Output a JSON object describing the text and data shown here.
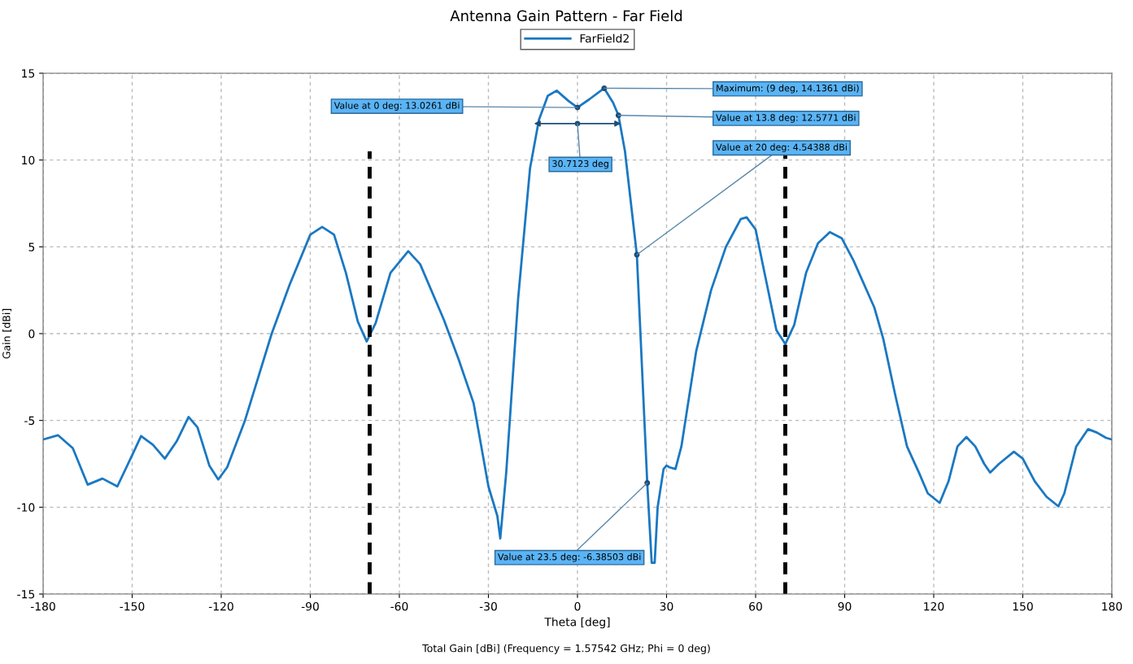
{
  "chart_data": {
    "type": "line",
    "title": "Antenna Gain Pattern - Far Field",
    "xlabel": "Theta [deg]",
    "ylabel": "Gain [dBi]",
    "x": [
      -180,
      -175,
      -170,
      -165,
      -160,
      -155,
      -150,
      -147,
      -143,
      -139,
      -135,
      -131,
      -128,
      -124,
      -121,
      -118,
      -112,
      -103,
      -97,
      -90,
      -86,
      -82,
      -78,
      -74,
      -71,
      -68,
      -63,
      -57,
      -53,
      -45,
      -40,
      -35,
      -30,
      -27,
      -26,
      -24,
      -20,
      -16,
      -13,
      -10,
      -7,
      -3,
      0,
      4,
      9,
      12,
      13.8,
      16,
      20,
      23.5,
      25,
      26,
      27,
      29,
      30,
      31,
      33,
      35,
      40,
      45,
      50,
      55,
      57,
      60,
      63,
      67,
      70,
      73,
      77,
      81,
      85,
      89,
      93,
      100,
      103,
      107,
      111,
      115,
      118,
      122,
      125,
      128,
      131,
      134,
      137,
      139,
      142,
      147,
      150,
      154,
      158,
      162,
      164,
      168,
      172,
      175,
      178,
      180
    ],
    "series": [
      {
        "name": "FarField2",
        "color": "#1a78c2",
        "values": [
          -6.1,
          -5.85,
          -6.6,
          -8.7,
          -8.35,
          -8.8,
          -7.0,
          -5.9,
          -6.4,
          -7.2,
          -6.2,
          -4.8,
          -5.4,
          -7.6,
          -8.4,
          -7.7,
          -5.0,
          0.0,
          2.8,
          5.7,
          6.15,
          5.7,
          3.5,
          0.7,
          -0.45,
          0.6,
          3.5,
          4.75,
          4.0,
          0.8,
          -1.5,
          -4.0,
          -8.8,
          -10.5,
          -11.8,
          -8.0,
          2.0,
          9.5,
          12.3,
          13.7,
          14.0,
          13.4,
          13.0261,
          13.5,
          14.1361,
          13.3,
          12.5771,
          10.5,
          4.54388,
          -8.6,
          -13.2,
          -13.2,
          -10.0,
          -7.8,
          -7.6,
          -7.7,
          -7.8,
          -6.5,
          -1.0,
          2.5,
          5.0,
          6.6,
          6.7,
          6.0,
          3.5,
          0.2,
          -0.6,
          0.5,
          3.5,
          5.2,
          5.85,
          5.5,
          4.2,
          1.5,
          -0.3,
          -3.5,
          -6.5,
          -8.0,
          -9.2,
          -9.75,
          -8.5,
          -6.5,
          -5.95,
          -6.5,
          -7.5,
          -8.0,
          -7.5,
          -6.8,
          -7.2,
          -8.5,
          -9.4,
          -9.95,
          -9.2,
          -6.5,
          -5.5,
          -5.7,
          -6.0,
          -6.1
        ]
      }
    ],
    "xlim": [
      -180,
      180
    ],
    "xticks": [
      -180,
      -150,
      -120,
      -90,
      -60,
      -30,
      0,
      30,
      60,
      90,
      120,
      150,
      180
    ],
    "ylim": [
      -15,
      15
    ],
    "yticks": [
      -15,
      -10,
      -5,
      0,
      5,
      10,
      15
    ],
    "grid": true,
    "legend": "top",
    "marker": "none",
    "line_style": "solid",
    "ref_lines": [
      {
        "axis": "x",
        "value": -70,
        "color": "#000000",
        "line_style": "dashed"
      },
      {
        "axis": "x",
        "value": 70,
        "color": "#000000",
        "line_style": "dashed"
      }
    ],
    "annotations": [
      {
        "text": "Value at 0 deg: 13.0261 dBi",
        "x": 0,
        "y": 13.0261
      },
      {
        "text": "Maximum: (9 deg, 14.1361 dBi)",
        "x": 9,
        "y": 14.1361
      },
      {
        "text": "Value at 13.8 deg: 12.5771 dBi",
        "x": 13.8,
        "y": 12.5771
      },
      {
        "text": "Value at 20 deg: 4.54388 dBi",
        "x": 20,
        "y": 4.54388
      },
      {
        "text": "Value at 23.5 deg: -6.38503 dBi",
        "x": 23.5,
        "y": -8.6
      },
      {
        "text": "30.7123 deg",
        "x": 0,
        "y": 12.1
      },
      "Total Gain [dBi] (Frequency = 1.57542 GHz; Phi = 0 deg)"
    ]
  }
}
